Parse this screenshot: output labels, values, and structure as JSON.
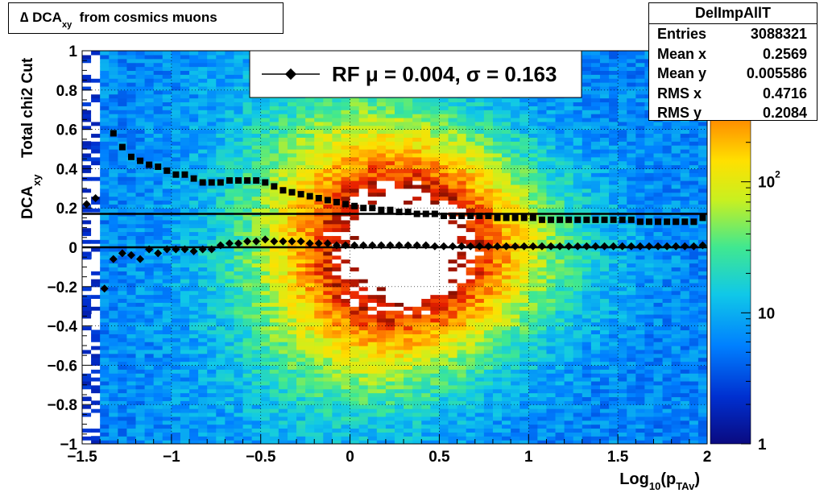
{
  "title": {
    "main": "∆ DCA",
    "sub": "xy",
    "rest": "from cosmics muons"
  },
  "stats": {
    "name": "DelImpAllT",
    "rows": [
      {
        "label": "Entries",
        "value": "3088321"
      },
      {
        "label": "Mean x",
        "value": "0.2569"
      },
      {
        "label": "Mean y",
        "value": "0.005586"
      },
      {
        "label": "RMS x",
        "value": "0.4716"
      },
      {
        "label": "RMS y",
        "value": "0.2084"
      }
    ]
  },
  "legend": {
    "text": "RF μ =  0.004, σ =   0.163"
  },
  "colors": {
    "marker": "#000000",
    "line": "#000000"
  },
  "chart_data": {
    "type": "heatmap",
    "xlabel": {
      "main": "Log",
      "sub1": "10",
      "mid": "(p",
      "sub2": "TAv",
      "end": ")"
    },
    "ylabel": {
      "line1": "Total chi2 Cut",
      "main": "DCA",
      "sub": "xy"
    },
    "xlim": [
      -1.5,
      2
    ],
    "ylim": [
      -1,
      1
    ],
    "x_ticks": [
      -1.5,
      -1,
      -0.5,
      0,
      0.5,
      1,
      1.5,
      2
    ],
    "x_tick_labels": [
      "−1.5",
      "−1",
      "−0.5",
      "0",
      "0.5",
      "1",
      "1.5",
      "2"
    ],
    "y_ticks": [
      -1,
      -0.8,
      -0.6,
      -0.4,
      -0.2,
      0,
      0.2,
      0.4,
      0.6,
      0.8,
      1
    ],
    "y_tick_labels": [
      "−1",
      "−0.8",
      "−0.6",
      "−0.4",
      "−0.2",
      "0",
      "0.2",
      "0.4",
      "0.6",
      "0.8",
      "1"
    ],
    "z_scale": "log",
    "z_range": [
      1,
      1000
    ],
    "z_tick_labels": [
      {
        "value": 1,
        "label": "1"
      },
      {
        "value": 10,
        "label": "10"
      },
      {
        "value": 100,
        "label": "10",
        "sup": "2"
      }
    ],
    "grid": true,
    "series": [
      {
        "name": "RF",
        "kind": "mean",
        "x": [
          -1.475,
          -1.425,
          -1.375,
          -1.325,
          -1.275,
          -1.225,
          -1.175,
          -1.125,
          -1.075,
          -1.025,
          -0.975,
          -0.925,
          -0.875,
          -0.825,
          -0.775,
          -0.725,
          -0.675,
          -0.625,
          -0.575,
          -0.525,
          -0.475,
          -0.425,
          -0.375,
          -0.325,
          -0.275,
          -0.225,
          -0.175,
          -0.125,
          -0.075,
          -0.025,
          0.025,
          0.075,
          0.125,
          0.175,
          0.225,
          0.275,
          0.325,
          0.375,
          0.425,
          0.475,
          0.525,
          0.575,
          0.625,
          0.675,
          0.725,
          0.775,
          0.825,
          0.875,
          0.925,
          0.975,
          1.025,
          1.075,
          1.125,
          1.175,
          1.225,
          1.275,
          1.325,
          1.375,
          1.425,
          1.475,
          1.525,
          1.575,
          1.625,
          1.675,
          1.725,
          1.775,
          1.825,
          1.875,
          1.925,
          1.975
        ],
        "y": [
          0.22,
          0.25,
          -0.21,
          -0.06,
          -0.03,
          -0.04,
          -0.06,
          -0.01,
          -0.03,
          -0.01,
          -0.01,
          -0.01,
          -0.02,
          -0.01,
          -0.01,
          0.01,
          0.02,
          0.02,
          0.03,
          0.03,
          0.04,
          0.03,
          0.03,
          0.03,
          0.03,
          0.02,
          0.02,
          0.02,
          0.01,
          0.01,
          0.01,
          0.01,
          0.01,
          0.01,
          0.01,
          0.01,
          0.01,
          0.01,
          0.01,
          0.005,
          0.005,
          0.005,
          0.005,
          0.005,
          0.005,
          0.005,
          0.005,
          0.005,
          0.005,
          0.005,
          0.005,
          0.005,
          0.005,
          0.005,
          0.005,
          0.005,
          0.005,
          0.005,
          0.005,
          0.005,
          0.005,
          0.005,
          0.005,
          0.005,
          0.005,
          0.005,
          0.005,
          0.005,
          0.005,
          0.01
        ]
      },
      {
        "name": "RF sigma",
        "kind": "sigma",
        "x": [
          -1.325,
          -1.275,
          -1.225,
          -1.175,
          -1.125,
          -1.075,
          -1.025,
          -0.975,
          -0.925,
          -0.875,
          -0.825,
          -0.775,
          -0.725,
          -0.675,
          -0.625,
          -0.575,
          -0.525,
          -0.475,
          -0.425,
          -0.375,
          -0.325,
          -0.275,
          -0.225,
          -0.175,
          -0.125,
          -0.075,
          -0.025,
          0.025,
          0.075,
          0.125,
          0.175,
          0.225,
          0.275,
          0.325,
          0.375,
          0.425,
          0.475,
          0.525,
          0.575,
          0.625,
          0.675,
          0.725,
          0.775,
          0.825,
          0.875,
          0.925,
          0.975,
          1.025,
          1.075,
          1.125,
          1.175,
          1.225,
          1.275,
          1.325,
          1.375,
          1.425,
          1.475,
          1.525,
          1.575,
          1.625,
          1.675,
          1.725,
          1.775,
          1.825,
          1.875,
          1.925,
          1.975
        ],
        "y": [
          0.58,
          0.51,
          0.46,
          0.44,
          0.42,
          0.41,
          0.39,
          0.37,
          0.37,
          0.35,
          0.33,
          0.33,
          0.33,
          0.34,
          0.34,
          0.34,
          0.34,
          0.33,
          0.31,
          0.29,
          0.28,
          0.27,
          0.26,
          0.25,
          0.24,
          0.23,
          0.22,
          0.21,
          0.2,
          0.2,
          0.19,
          0.19,
          0.18,
          0.18,
          0.17,
          0.17,
          0.17,
          0.16,
          0.16,
          0.16,
          0.16,
          0.16,
          0.16,
          0.15,
          0.15,
          0.15,
          0.15,
          0.15,
          0.14,
          0.14,
          0.14,
          0.14,
          0.14,
          0.14,
          0.14,
          0.14,
          0.14,
          0.14,
          0.14,
          0.13,
          0.13,
          0.13,
          0.13,
          0.13,
          0.13,
          0.13,
          0.15
        ]
      }
    ],
    "fit_lines": [
      {
        "y": 0.0
      },
      {
        "y": 0.17
      }
    ]
  }
}
